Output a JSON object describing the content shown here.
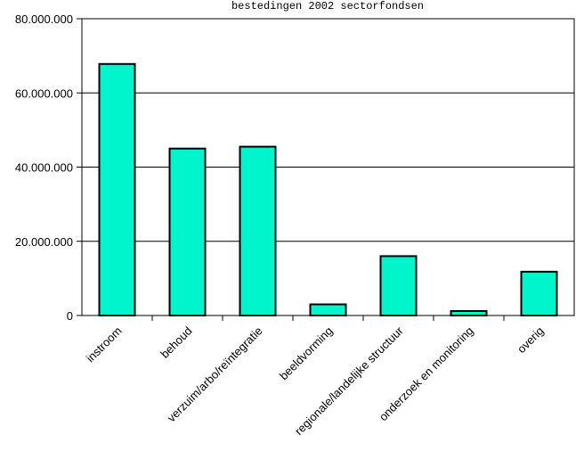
{
  "chart_data": {
    "type": "bar",
    "title": "bestedingen 2002 sectorfondsen",
    "xlabel": "",
    "ylabel": "",
    "categories": [
      "instroom",
      "behoud",
      "verzuim/arbo/reïntegratie",
      "beeldvorming",
      "regionale/landelijke structuur",
      "onderzoek en monitoring",
      "overig"
    ],
    "values": [
      67800000,
      45000000,
      45500000,
      3000000,
      16000000,
      1200000,
      11800000
    ],
    "ylim": [
      0,
      80000000
    ],
    "yticks": [
      0,
      20000000,
      40000000,
      60000000,
      80000000
    ],
    "ytick_labels": [
      "0",
      "20.000.000",
      "40.000.000",
      "60.000.000",
      "80.000.000"
    ],
    "grid": true,
    "colors": {
      "bar_fill": "#00f5cc",
      "bar_stroke": "#000000",
      "grid": "#000000"
    }
  }
}
